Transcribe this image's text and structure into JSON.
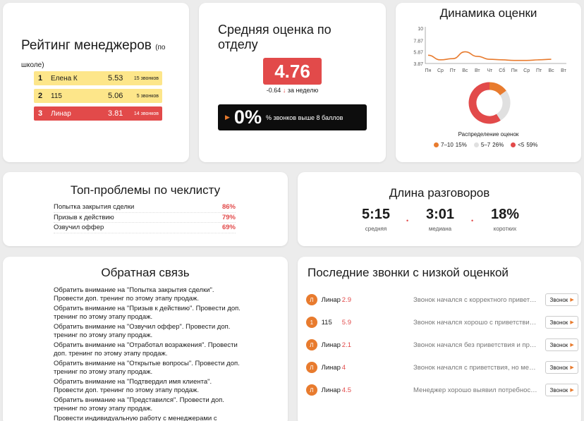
{
  "rating": {
    "title": "Рейтинг менеджеров",
    "subtitle": "(по школе)",
    "rows": [
      {
        "pos": "1",
        "name": "Елена К",
        "score": "5.53",
        "count": "15 звонков",
        "color": "#fde68a"
      },
      {
        "pos": "2",
        "name": "115",
        "score": "5.06",
        "count": "5 звонков",
        "color": "#fde68a"
      },
      {
        "pos": "3",
        "name": "Линар",
        "score": "3.81",
        "count": "14 звонков",
        "color": "#e24a4a"
      }
    ]
  },
  "avg": {
    "title": "Средняя оценка по отделу",
    "value": "4.76",
    "delta": "-0.64",
    "delta_arrow": "↓",
    "delta_period": "за неделю",
    "share_value": "0%",
    "share_text": "% звонков выше 8 баллов",
    "badge_color": "#e24a4a"
  },
  "dynamics": {
    "title": "Динамика оценки",
    "distribution_title": "Распределение оценок",
    "legend": [
      {
        "label": "7–10",
        "value": "15%",
        "color": "#e87b2e"
      },
      {
        "label": "5–7",
        "value": "26%",
        "color": "#e0e0e0"
      },
      {
        "label": "<5",
        "value": "59%",
        "color": "#e24a4a"
      }
    ]
  },
  "chart_data": [
    {
      "type": "line",
      "title": "Динамика оценки",
      "x": [
        "Пн",
        "Ср",
        "Пт",
        "Вс",
        "Вт",
        "Чт",
        "Сб",
        "Пн",
        "Ср",
        "Пт",
        "Вс",
        "Вт"
      ],
      "series": [
        {
          "values": [
            5.3,
            4.5,
            4.7,
            5.9,
            5.1,
            4.6,
            4.5,
            4.4,
            4.4,
            4.5,
            4.6,
            null
          ]
        }
      ],
      "y_ticks": [
        "10",
        "7.87",
        "5.87",
        "3.87"
      ],
      "ylim": [
        3.87,
        10
      ],
      "color": "#e87b2e",
      "grid": false
    },
    {
      "type": "pie",
      "title": "Распределение оценок",
      "categories": [
        "7–10",
        "5–7",
        "<5"
      ],
      "values": [
        15,
        26,
        59
      ]
    }
  ],
  "problems": {
    "title": "Топ-проблемы по чеклисту",
    "rows": [
      {
        "label": "Попытка закрытия сделки",
        "value": "86%"
      },
      {
        "label": "Призыв к действию",
        "value": "79%"
      },
      {
        "label": "Озвучил оффер",
        "value": "69%"
      }
    ]
  },
  "length": {
    "title": "Длина разговоров",
    "stats": [
      {
        "value": "5:15",
        "label": "средняя"
      },
      {
        "value": "3:01",
        "label": "медиана"
      },
      {
        "value": "18%",
        "label": "коротких"
      }
    ],
    "separator": "•"
  },
  "feedback": {
    "title": "Обратная связь",
    "items": [
      "Обратить внимание на \"Попытка закрытия сделки\". Провести доп. тренинг по этому этапу продаж.",
      "Обратить внимание на \"Призыв к действию\". Провести доп. тренинг по этому этапу продаж.",
      "Обратить внимание на \"Озвучил оффер\". Провести доп. тренинг по этому этапу продаж.",
      "Обратить внимание на \"Отработал возражения\". Провести доп. тренинг по этому этапу продаж.",
      "Обратить внимание на \"Открытые вопросы\". Провести доп. тренинг по этому этапу продаж.",
      "Обратить внимание на \"Подтвердил имя клиента\". Провести доп. тренинг по этому этапу продаж.",
      "Обратить внимание на \"Представился\". Провести доп. тренинг по этому этапу продаж.",
      "Провести индивидуальную работу с менеджерами с"
    ]
  },
  "calls": {
    "title": "Последние звонки с низкой оценкой",
    "button_label": "Звонок",
    "rows": [
      {
        "avatar": "Л",
        "name": "Линар",
        "score": "2.9",
        "desc": "Звонок начался с корректного приветствия"
      },
      {
        "avatar": "1",
        "name": "115",
        "score": "5.9",
        "desc": "Звонок начался хорошо с приветствия и..."
      },
      {
        "avatar": "Л",
        "name": "Линар",
        "score": "2.1",
        "desc": "Звонок начался без приветствия и пред..."
      },
      {
        "avatar": "Л",
        "name": "Линар",
        "score": "4",
        "desc": "Звонок начался с приветствия, но мене..."
      },
      {
        "avatar": "Л",
        "name": "Линар",
        "score": "4.5",
        "desc": "Менеджер хорошо выявил потребности..."
      }
    ]
  }
}
